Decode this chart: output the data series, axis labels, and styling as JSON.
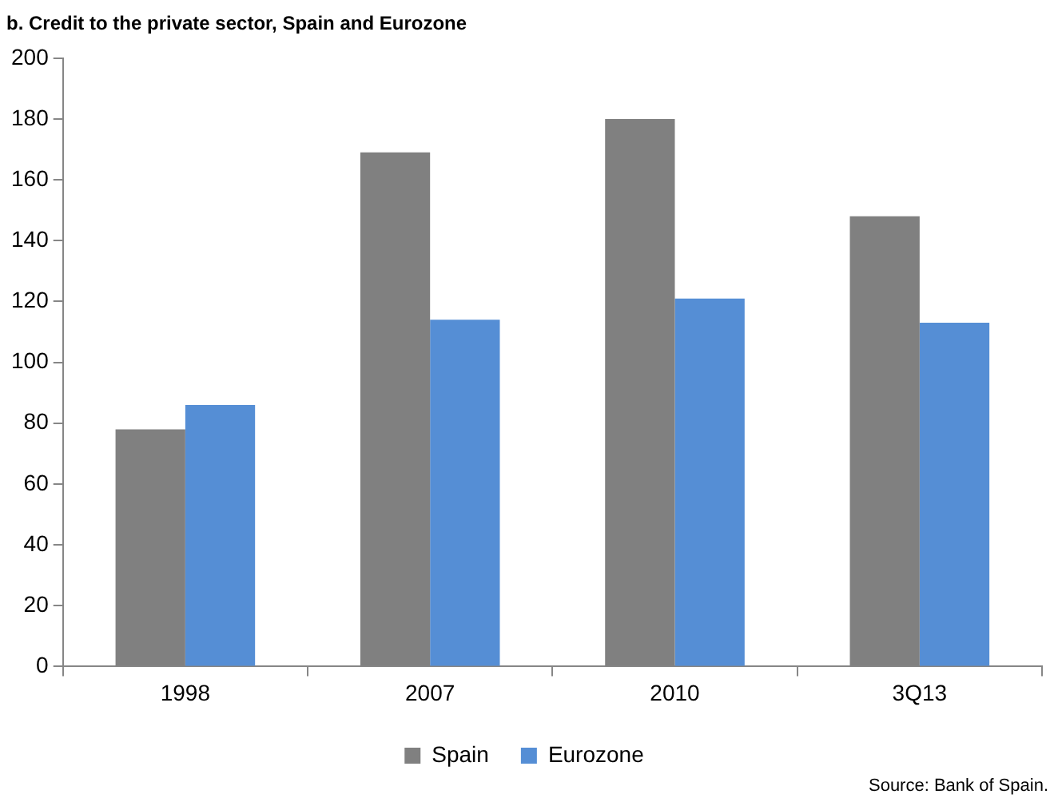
{
  "chart_data": {
    "type": "bar",
    "title": "b. Credit to the private sector, Spain and Eurozone",
    "categories": [
      "1998",
      "2007",
      "2010",
      "3Q13"
    ],
    "series": [
      {
        "name": "Spain",
        "color": "#808080",
        "values": [
          78,
          169,
          180,
          148
        ]
      },
      {
        "name": "Eurozone",
        "color": "#558ed5",
        "values": [
          86,
          114,
          121,
          113
        ]
      }
    ],
    "ylim": [
      0,
      200
    ],
    "yticks": [
      0,
      20,
      40,
      60,
      80,
      100,
      120,
      140,
      160,
      180,
      200
    ],
    "grid": false,
    "legend": "bottom",
    "annotations": [
      "Source: Bank of Spain."
    ]
  }
}
